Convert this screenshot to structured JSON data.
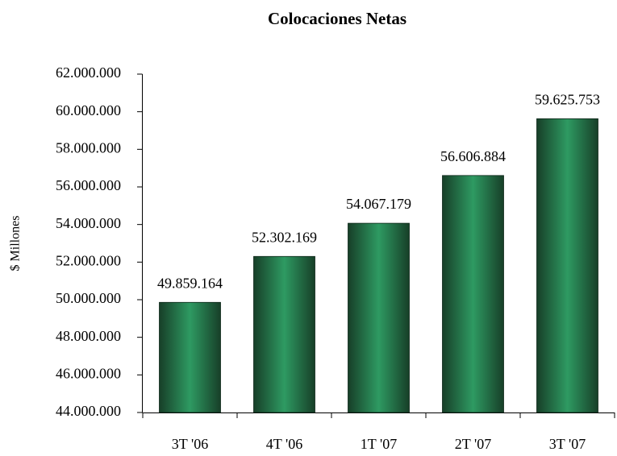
{
  "chart_data": {
    "type": "bar",
    "title": "Colocaciones Netas",
    "y_label": "$ Millones",
    "categories": [
      "3T '06",
      "4T '06",
      "1T '07",
      "2T '07",
      "3T '07"
    ],
    "values": [
      49859164,
      52302169,
      54067179,
      56606884,
      59625753
    ],
    "value_labels": [
      "49.859.164",
      "52.302.169",
      "54.067.179",
      "56.606.884",
      "59.625.753"
    ],
    "color": "#2e9a62",
    "ylim": [
      44000000,
      62000000
    ],
    "yticks": [
      {
        "value": 44000000,
        "label": "44.000.000"
      },
      {
        "value": 46000000,
        "label": "46.000.000"
      },
      {
        "value": 48000000,
        "label": "48.000.000"
      },
      {
        "value": 50000000,
        "label": "50.000.000"
      },
      {
        "value": 52000000,
        "label": "52.000.000"
      },
      {
        "value": 54000000,
        "label": "54.000.000"
      },
      {
        "value": 56000000,
        "label": "56.000.000"
      },
      {
        "value": 58000000,
        "label": "58.000.000"
      },
      {
        "value": 60000000,
        "label": "60.000.000"
      },
      {
        "value": 62000000,
        "label": "62.000.000"
      }
    ],
    "grid": false
  }
}
